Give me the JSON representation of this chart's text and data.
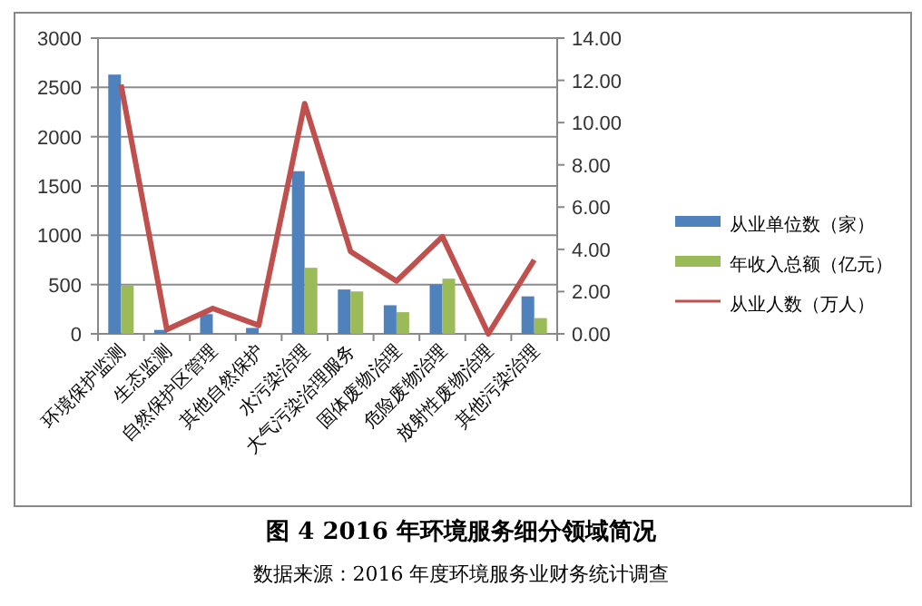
{
  "chart_data": {
    "type": "bar",
    "title": "图 4  2016 年环境服务细分领域简况",
    "annotations": [
      "数据来源：2016 年度环境服务业财务统计调查"
    ],
    "categories": [
      "环境保护监测",
      "生态监测",
      "自然保护区管理",
      "其他自然保护",
      "水污染治理",
      "大气污染治理服务",
      "固体废物治理",
      "危险废物治理",
      "放射性废物治理",
      "其他污染治理"
    ],
    "series": [
      {
        "name": "从业单位数（家）",
        "color": "#4f81bd",
        "values": [
          2630,
          40,
          200,
          60,
          1650,
          450,
          290,
          500,
          0,
          380
        ]
      },
      {
        "name": "年收入总额（亿元）",
        "color": "#9bbb59",
        "values": [
          490,
          0,
          0,
          0,
          670,
          430,
          220,
          560,
          0,
          160
        ]
      },
      {
        "name": "从业人数（万人）",
        "color": "#c0504d",
        "type": "line",
        "axis": "y2",
        "values": [
          11.8,
          0.2,
          1.2,
          0.4,
          10.9,
          3.9,
          2.5,
          4.6,
          0,
          3.5
        ]
      }
    ],
    "ylim": [
      0,
      3000
    ],
    "yticks": [
      0,
      500,
      1000,
      1500,
      2000,
      2500,
      3000
    ],
    "y2lim": [
      0,
      14
    ],
    "y2ticks": [
      {
        "value": 0,
        "label": "0.00"
      },
      {
        "value": 2,
        "label": "2.00"
      },
      {
        "value": 4,
        "label": "4.00"
      },
      {
        "value": 6,
        "label": "6.00"
      },
      {
        "value": 8,
        "label": "8.00"
      },
      {
        "value": 10,
        "label": "10.00"
      },
      {
        "value": 12,
        "label": "12.00"
      },
      {
        "value": 14,
        "label": "14.00"
      }
    ],
    "grid": "y",
    "legend": "right",
    "line_style": "solid"
  }
}
